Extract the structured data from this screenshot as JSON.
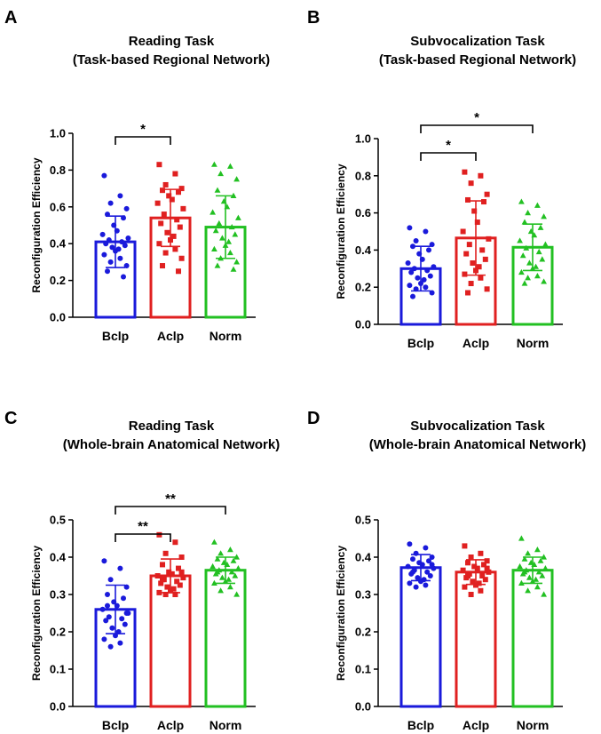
{
  "chart_data": [
    {
      "type": "bar",
      "panel": "A",
      "title": "Reading Task",
      "subtitle": "(Task-based Regional Network)",
      "xlabel": "",
      "ylabel": "Reconfiguration Efficiency",
      "ylim": [
        0,
        1.0
      ],
      "yticks": [
        "0.0",
        "0.2",
        "0.4",
        "0.6",
        "0.8",
        "1.0"
      ],
      "categories": [
        "Bclp",
        "Aclp",
        "Norm"
      ],
      "colors": [
        "#1a1adb",
        "#e02020",
        "#22c022"
      ],
      "markers": [
        "circle",
        "square",
        "triangle"
      ],
      "series": [
        {
          "name": "Reconfiguration Efficiency",
          "values": [
            0.41,
            0.54,
            0.49
          ],
          "errors": [
            0.14,
            0.155,
            0.17
          ]
        }
      ],
      "points": [
        [
          0.77,
          0.66,
          0.62,
          0.59,
          0.56,
          0.54,
          0.5,
          0.47,
          0.45,
          0.43,
          0.42,
          0.41,
          0.4,
          0.39,
          0.38,
          0.37,
          0.36,
          0.34,
          0.32,
          0.3,
          0.28,
          0.25,
          0.22
        ],
        [
          0.83,
          0.78,
          0.72,
          0.7,
          0.69,
          0.68,
          0.66,
          0.64,
          0.62,
          0.59,
          0.56,
          0.53,
          0.51,
          0.49,
          0.46,
          0.44,
          0.42,
          0.4,
          0.37,
          0.35,
          0.32,
          0.28,
          0.25
        ],
        [
          0.83,
          0.82,
          0.78,
          0.75,
          0.69,
          0.66,
          0.63,
          0.6,
          0.57,
          0.54,
          0.51,
          0.49,
          0.47,
          0.45,
          0.43,
          0.41,
          0.39,
          0.37,
          0.35,
          0.32,
          0.3,
          0.28,
          0.26
        ]
      ],
      "significance": [
        {
          "from": 0,
          "to": 1,
          "label": "*"
        }
      ]
    },
    {
      "type": "bar",
      "panel": "B",
      "title": "Subvocalization Task",
      "subtitle": "(Task-based Regional Network)",
      "xlabel": "",
      "ylabel": "Reconfiguration Efficiency",
      "ylim": [
        0,
        1.0
      ],
      "yticks": [
        "0.0",
        "0.2",
        "0.4",
        "0.6",
        "0.8",
        "1.0"
      ],
      "categories": [
        "Bclp",
        "Aclp",
        "Norm"
      ],
      "colors": [
        "#1a1adb",
        "#e02020",
        "#22c022"
      ],
      "markers": [
        "circle",
        "square",
        "triangle"
      ],
      "series": [
        {
          "name": "Reconfiguration Efficiency",
          "values": [
            0.3,
            0.465,
            0.415
          ],
          "errors": [
            0.12,
            0.2,
            0.125
          ]
        }
      ],
      "points": [
        [
          0.52,
          0.5,
          0.45,
          0.43,
          0.42,
          0.4,
          0.38,
          0.35,
          0.33,
          0.31,
          0.3,
          0.29,
          0.28,
          0.26,
          0.25,
          0.24,
          0.22,
          0.21,
          0.2,
          0.19,
          0.17,
          0.15
        ],
        [
          0.82,
          0.8,
          0.76,
          0.7,
          0.67,
          0.66,
          0.61,
          0.55,
          0.5,
          0.46,
          0.43,
          0.4,
          0.38,
          0.35,
          0.33,
          0.31,
          0.29,
          0.27,
          0.25,
          0.22,
          0.19,
          0.17
        ],
        [
          0.66,
          0.64,
          0.6,
          0.58,
          0.55,
          0.52,
          0.5,
          0.48,
          0.45,
          0.43,
          0.41,
          0.39,
          0.37,
          0.35,
          0.33,
          0.31,
          0.3,
          0.28,
          0.26,
          0.25,
          0.23,
          0.22
        ]
      ],
      "significance": [
        {
          "from": 0,
          "to": 1,
          "label": "*"
        },
        {
          "from": 0,
          "to": 2,
          "label": "*"
        }
      ]
    },
    {
      "type": "bar",
      "panel": "C",
      "title": "Reading Task",
      "subtitle": "(Whole-brain Anatomical Network)",
      "xlabel": "",
      "ylabel": "Reconfiguration Efficiency",
      "ylim": [
        0,
        0.5
      ],
      "yticks": [
        "0.0",
        "0.1",
        "0.2",
        "0.3",
        "0.4",
        "0.5"
      ],
      "categories": [
        "Bclp",
        "Aclp",
        "Norm"
      ],
      "colors": [
        "#1a1adb",
        "#e02020",
        "#22c022"
      ],
      "markers": [
        "circle",
        "square",
        "triangle"
      ],
      "series": [
        {
          "name": "Reconfiguration Efficiency",
          "values": [
            0.26,
            0.35,
            0.365
          ],
          "errors": [
            0.065,
            0.045,
            0.035
          ]
        }
      ],
      "points": [
        [
          0.39,
          0.37,
          0.34,
          0.32,
          0.3,
          0.29,
          0.28,
          0.27,
          0.26,
          0.25,
          0.24,
          0.235,
          0.23,
          0.22,
          0.21,
          0.2,
          0.19,
          0.18,
          0.17,
          0.16,
          0.25,
          0.27
        ],
        [
          0.46,
          0.44,
          0.41,
          0.4,
          0.38,
          0.37,
          0.36,
          0.355,
          0.35,
          0.345,
          0.34,
          0.335,
          0.33,
          0.325,
          0.32,
          0.315,
          0.31,
          0.305,
          0.3,
          0.3,
          0.36,
          0.34
        ],
        [
          0.44,
          0.42,
          0.41,
          0.4,
          0.395,
          0.39,
          0.385,
          0.38,
          0.375,
          0.37,
          0.365,
          0.36,
          0.355,
          0.35,
          0.345,
          0.34,
          0.335,
          0.33,
          0.32,
          0.31,
          0.3,
          0.36
        ]
      ],
      "significance": [
        {
          "from": 0,
          "to": 1,
          "label": "**"
        },
        {
          "from": 0,
          "to": 2,
          "label": "**"
        }
      ]
    },
    {
      "type": "bar",
      "panel": "D",
      "title": "Subvocalization Task",
      "subtitle": "(Whole-brain Anatomical Network)",
      "xlabel": "",
      "ylabel": "Reconfiguration Efficiency",
      "ylim": [
        0,
        0.5
      ],
      "yticks": [
        "0.0",
        "0.1",
        "0.2",
        "0.3",
        "0.4",
        "0.5"
      ],
      "categories": [
        "Bclp",
        "Aclp",
        "Norm"
      ],
      "colors": [
        "#1a1adb",
        "#e02020",
        "#22c022"
      ],
      "markers": [
        "circle",
        "square",
        "triangle"
      ],
      "series": [
        {
          "name": "Reconfiguration Efficiency",
          "values": [
            0.372,
            0.36,
            0.365
          ],
          "errors": [
            0.035,
            0.033,
            0.035
          ]
        }
      ],
      "points": [
        [
          0.435,
          0.425,
          0.41,
          0.4,
          0.395,
          0.39,
          0.385,
          0.38,
          0.375,
          0.37,
          0.365,
          0.36,
          0.355,
          0.35,
          0.345,
          0.34,
          0.335,
          0.33,
          0.325,
          0.32,
          0.38,
          0.36
        ],
        [
          0.43,
          0.41,
          0.4,
          0.39,
          0.385,
          0.38,
          0.375,
          0.37,
          0.365,
          0.36,
          0.355,
          0.35,
          0.345,
          0.34,
          0.335,
          0.33,
          0.325,
          0.32,
          0.31,
          0.3,
          0.37,
          0.35
        ],
        [
          0.45,
          0.42,
          0.41,
          0.4,
          0.395,
          0.39,
          0.385,
          0.38,
          0.375,
          0.37,
          0.365,
          0.36,
          0.355,
          0.35,
          0.345,
          0.34,
          0.335,
          0.33,
          0.32,
          0.31,
          0.3,
          0.36
        ]
      ],
      "significance": []
    }
  ]
}
